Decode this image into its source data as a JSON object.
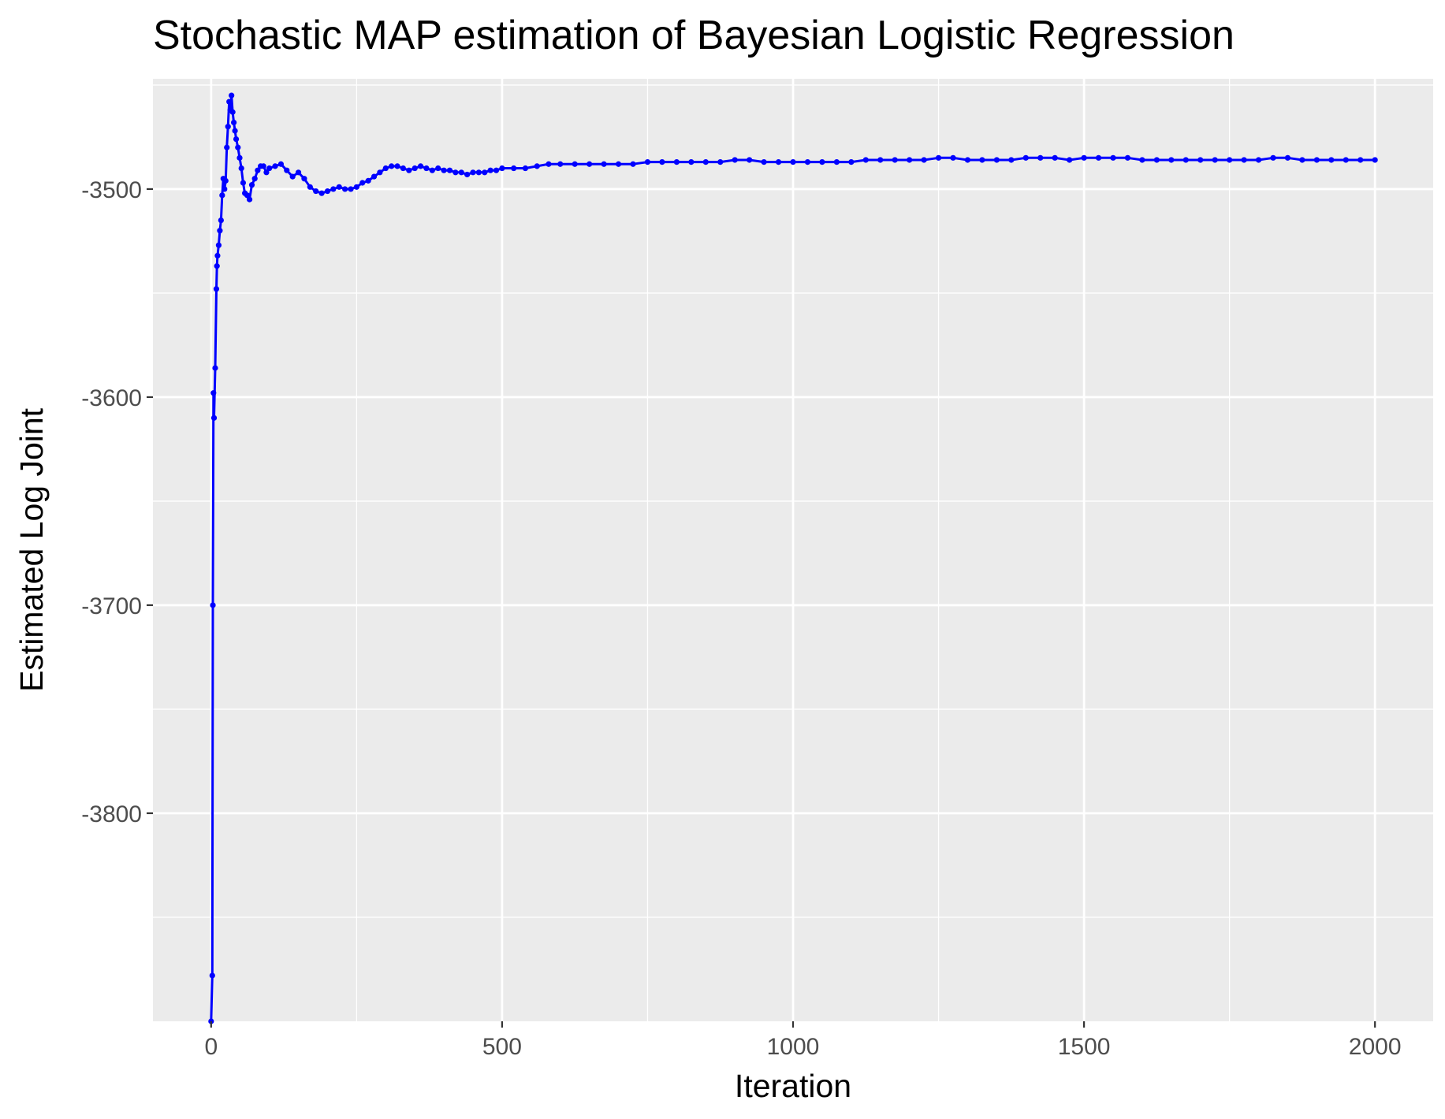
{
  "chart_data": {
    "type": "line",
    "title": "Stochastic MAP estimation of Bayesian Logistic Regression",
    "xlabel": "Iteration",
    "ylabel": "Estimated Log Joint",
    "xlim": [
      -100,
      2100
    ],
    "ylim": [
      -3900,
      -3447
    ],
    "x_ticks": [
      0,
      500,
      1000,
      1500,
      2000
    ],
    "x_tick_labels": [
      "0",
      "500",
      "1000",
      "1500",
      "2000"
    ],
    "y_ticks": [
      -3800,
      -3700,
      -3600,
      -3500
    ],
    "y_tick_labels": [
      "-3800",
      "-3700",
      "-3600",
      "-3500"
    ],
    "grid": true,
    "background": "#ebebeb",
    "grid_color": "#ffffff",
    "line_color": "#0000ff",
    "series": [
      {
        "x": [
          0,
          2,
          3,
          4,
          5,
          7,
          9,
          10,
          11,
          13,
          15,
          17,
          19,
          21,
          23,
          25,
          27,
          29,
          31,
          33,
          35,
          37,
          39,
          41,
          43,
          46,
          49,
          52,
          55,
          58,
          62,
          66,
          70,
          75,
          80,
          85,
          90,
          95,
          100,
          110,
          120,
          130,
          140,
          150,
          160,
          170,
          180,
          190,
          200,
          210,
          220,
          230,
          240,
          250,
          260,
          270,
          280,
          290,
          300,
          310,
          320,
          330,
          340,
          350,
          360,
          370,
          380,
          390,
          400,
          410,
          420,
          430,
          440,
          450,
          460,
          470,
          480,
          490,
          500,
          520,
          540,
          560,
          580,
          600,
          625,
          650,
          675,
          700,
          725,
          750,
          775,
          800,
          825,
          850,
          875,
          900,
          925,
          950,
          975,
          1000,
          1025,
          1050,
          1075,
          1100,
          1125,
          1150,
          1175,
          1200,
          1225,
          1250,
          1275,
          1300,
          1325,
          1350,
          1375,
          1400,
          1425,
          1450,
          1475,
          1500,
          1525,
          1550,
          1575,
          1600,
          1625,
          1650,
          1675,
          1700,
          1725,
          1750,
          1775,
          1800,
          1825,
          1850,
          1875,
          1900,
          1925,
          1950,
          1975,
          2000
        ],
        "y": [
          -3900,
          -3878,
          -3700,
          -3598,
          -3610,
          -3586,
          -3548,
          -3537,
          -3532,
          -3527,
          -3520,
          -3515,
          -3503,
          -3495,
          -3500,
          -3496,
          -3480,
          -3470,
          -3458,
          -3462,
          -3455,
          -3463,
          -3468,
          -3472,
          -3476,
          -3480,
          -3485,
          -3490,
          -3497,
          -3502,
          -3503,
          -3505,
          -3498,
          -3495,
          -3491,
          -3489,
          -3489,
          -3492,
          -3490,
          -3489,
          -3488,
          -3491,
          -3494,
          -3492,
          -3495,
          -3499,
          -3501,
          -3502,
          -3501,
          -3500,
          -3499,
          -3500,
          -3500,
          -3499,
          -3497,
          -3496,
          -3494,
          -3492,
          -3490,
          -3489,
          -3489,
          -3490,
          -3491,
          -3490,
          -3489,
          -3490,
          -3491,
          -3490,
          -3491,
          -3491,
          -3492,
          -3492,
          -3493,
          -3492,
          -3492,
          -3492,
          -3491,
          -3491,
          -3490,
          -3490,
          -3490,
          -3489,
          -3488,
          -3488,
          -3488,
          -3488,
          -3488,
          -3488,
          -3488,
          -3487,
          -3487,
          -3487,
          -3487,
          -3487,
          -3487,
          -3486,
          -3486,
          -3487,
          -3487,
          -3487,
          -3487,
          -3487,
          -3487,
          -3487,
          -3486,
          -3486,
          -3486,
          -3486,
          -3486,
          -3485,
          -3485,
          -3486,
          -3486,
          -3486,
          -3486,
          -3485,
          -3485,
          -3485,
          -3486,
          -3485,
          -3485,
          -3485,
          -3485,
          -3486,
          -3486,
          -3486,
          -3486,
          -3486,
          -3486,
          -3486,
          -3486,
          -3486,
          -3485,
          -3485,
          -3486,
          -3486,
          -3486,
          -3486,
          -3486,
          -3486
        ]
      }
    ]
  }
}
